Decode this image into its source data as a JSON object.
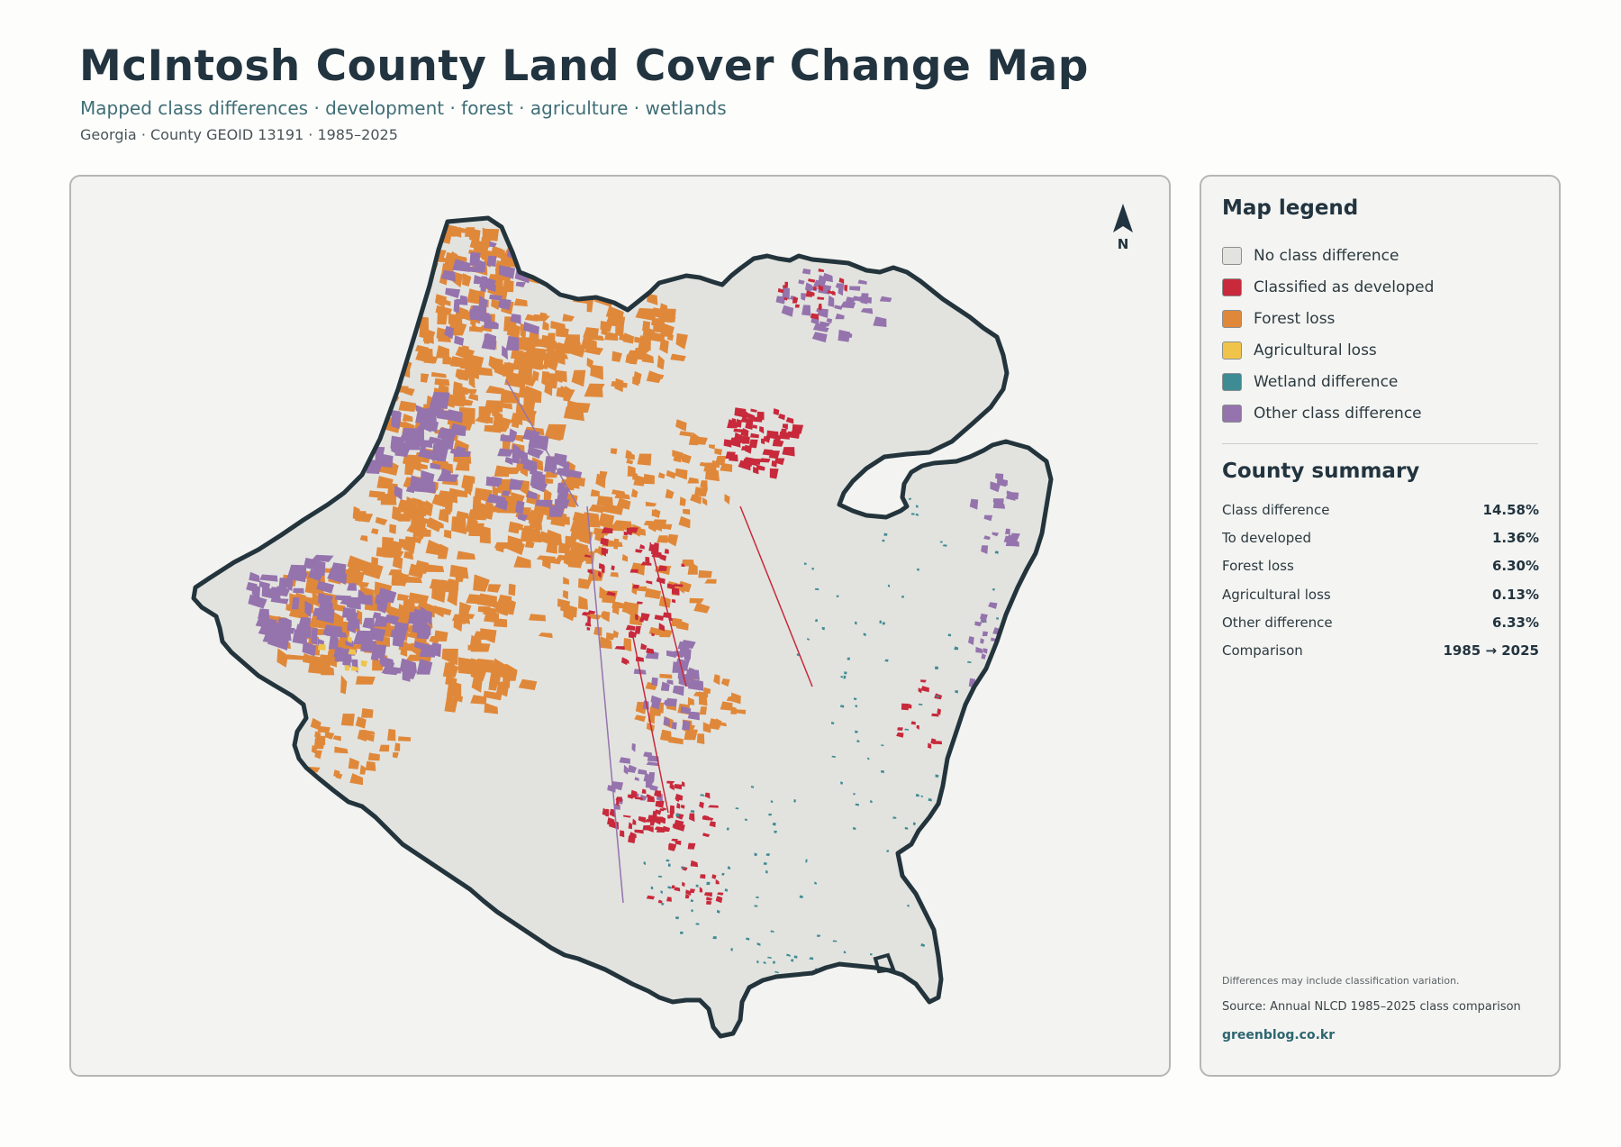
{
  "header": {
    "title": "McIntosh County Land Cover Change Map",
    "subtitle": "Mapped class differences · development · forest · agriculture · wetlands",
    "meta": "Georgia · County GEOID 13191 · 1985–2025"
  },
  "map": {
    "north_label": "N",
    "colors": {
      "background": "#f3f3f1",
      "county_fill": "#e2e3df",
      "county_outline": "#23343c",
      "developed": "#c8293b",
      "forest_loss": "#e0883a",
      "agricultural_loss": "#f0c44a",
      "wetland": "#3f8b93",
      "other": "#9573ad"
    }
  },
  "legend": {
    "title": "Map legend",
    "items": [
      {
        "label": "No class difference",
        "color": "#e2e3df"
      },
      {
        "label": "Classified as developed",
        "color": "#c8293b"
      },
      {
        "label": "Forest loss",
        "color": "#e0883a"
      },
      {
        "label": "Agricultural loss",
        "color": "#f0c44a"
      },
      {
        "label": "Wetland difference",
        "color": "#3f8b93"
      },
      {
        "label": "Other class difference",
        "color": "#9573ad"
      }
    ]
  },
  "summary": {
    "title": "County summary",
    "rows": [
      {
        "label": "Class difference",
        "value": "14.58%"
      },
      {
        "label": "To developed",
        "value": "1.36%"
      },
      {
        "label": "Forest loss",
        "value": "6.30%"
      },
      {
        "label": "Agricultural loss",
        "value": "0.13%"
      },
      {
        "label": "Other difference",
        "value": "6.33%"
      },
      {
        "label": "Comparison",
        "value": "1985 → 2025"
      }
    ]
  },
  "footer": {
    "note": "Differences may include classification variation.",
    "source": "Source: Annual NLCD 1985–2025 class comparison",
    "site": "greenblog.co.kr"
  }
}
